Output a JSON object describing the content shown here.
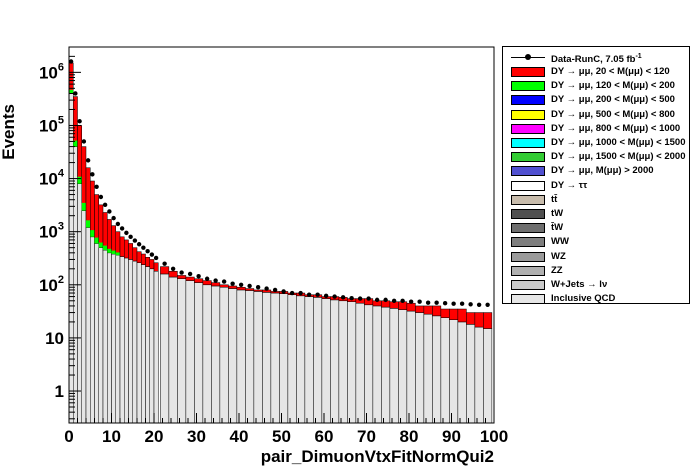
{
  "chart_data": {
    "type": "bar",
    "stacked": true,
    "xlabel": "pair_DimuonVtxFitNormQui2",
    "ylabel": "Events",
    "xlim": [
      0,
      100
    ],
    "ylim": [
      0.25,
      3000000
    ],
    "yscale": "log",
    "grid": false,
    "legend_position": "right",
    "x_ticks": [
      "0",
      "10",
      "20",
      "30",
      "40",
      "50",
      "60",
      "70",
      "80",
      "90",
      "100"
    ],
    "y_ticks": [
      "1",
      "10",
      "10^2",
      "10^3",
      "10^4",
      "10^5",
      "10^6"
    ],
    "data_series": {
      "name": "Data-RunC, 7.05 fb^{-1}",
      "x": [
        0.5,
        1.5,
        2.5,
        3.5,
        4.5,
        5.5,
        6.5,
        7.5,
        8.5,
        9.5,
        10.5,
        11.5,
        12.5,
        13.5,
        14.5,
        15.5,
        16.5,
        17.5,
        18.5,
        19.5,
        20.5,
        22.5,
        24.5,
        26.5,
        28.5,
        30.5,
        32.5,
        34.5,
        36.5,
        38.5,
        40.5,
        42.5,
        44.5,
        46.5,
        48.5,
        50.5,
        52.5,
        54.5,
        56.5,
        58.5,
        60.5,
        62.5,
        64.5,
        66.5,
        68.5,
        70.5,
        72.5,
        74.5,
        76.5,
        78.5,
        80.5,
        82.5,
        84.5,
        86.5,
        88.5,
        90.5,
        92.5,
        94.5,
        96.5,
        98.5
      ],
      "y": [
        1600000,
        400000,
        120000,
        50000,
        22000,
        12000,
        7000,
        4500,
        3200,
        2400,
        1800,
        1400,
        1150,
        950,
        800,
        680,
        580,
        500,
        430,
        370,
        320,
        250,
        200,
        170,
        160,
        145,
        130,
        120,
        115,
        105,
        100,
        95,
        90,
        85,
        80,
        75,
        70,
        70,
        65,
        65,
        62,
        60,
        58,
        56,
        55,
        55,
        52,
        52,
        50,
        50,
        48,
        48,
        46,
        46,
        45,
        44,
        44,
        43,
        42,
        42
      ]
    },
    "series": [
      {
        "name": "DY → μμ, 20 < M(μμ) <  120",
        "color": "#ff0000"
      },
      {
        "name": "DY → μμ, 120 < M(μμ) <  200",
        "color": "#00ff00"
      },
      {
        "name": "DY → μμ, 200 < M(μμ) <  500",
        "color": "#0000ff"
      },
      {
        "name": "DY → μμ, 500 < M(μμ) <  800",
        "color": "#ffff00"
      },
      {
        "name": "DY → μμ, 800 < M(μμ) < 1000",
        "color": "#ff00ff"
      },
      {
        "name": "DY → μμ, 1000 < M(μμ) < 1500",
        "color": "#00ffff"
      },
      {
        "name": "DY → μμ, 1500 < M(μμ) < 2000",
        "color": "#33cc33"
      },
      {
        "name": "DY → μμ, M(μμ) > 2000",
        "color": "#5050d0"
      },
      {
        "name": "DY → ττ",
        "color": "#ffffff"
      },
      {
        "name": "tt̄",
        "color": "#c8bcac"
      },
      {
        "name": "tW",
        "color": "#505050"
      },
      {
        "name": "t̄W",
        "color": "#6e6e6e"
      },
      {
        "name": "WW",
        "color": "#7e7e7e"
      },
      {
        "name": "WZ",
        "color": "#9a9a9a"
      },
      {
        "name": "ZZ",
        "color": "#b0b0b0"
      },
      {
        "name": "W+Jets → lν",
        "color": "#cacaca"
      },
      {
        "name": "Inclusive QCD",
        "color": "#e6e6e6"
      }
    ],
    "bins_x": [
      0.5,
      1.5,
      2.5,
      3.5,
      4.5,
      5.5,
      6.5,
      7.5,
      8.5,
      9.5,
      10.5,
      11.5,
      12.5,
      13.5,
      14.5,
      15.5,
      16.5,
      17.5,
      18.5,
      19.5,
      20.5,
      22.5,
      24.5,
      26.5,
      28.5,
      30.5,
      32.5,
      34.5,
      36.5,
      38.5,
      40.5,
      42.5,
      44.5,
      46.5,
      48.5,
      50.5,
      52.5,
      54.5,
      56.5,
      58.5,
      60.5,
      62.5,
      64.5,
      66.5,
      68.5,
      70.5,
      72.5,
      74.5,
      76.5,
      78.5,
      80.5,
      82.5,
      84.5,
      86.5,
      88.5,
      90.5,
      92.5,
      94.5,
      96.5,
      98.5
    ],
    "stack_totals": [
      1500000,
      350000,
      100000,
      40000,
      16000,
      9000,
      5000,
      3200,
      2300,
      1700,
      1300,
      1000,
      800,
      700,
      600,
      500,
      420,
      380,
      330,
      300,
      260,
      220,
      180,
      150,
      140,
      130,
      120,
      110,
      100,
      95,
      90,
      85,
      80,
      80,
      75,
      75,
      70,
      70,
      65,
      65,
      60,
      60,
      58,
      55,
      55,
      55,
      50,
      50,
      48,
      48,
      45,
      40,
      40,
      40,
      35,
      35,
      35,
      30,
      30,
      30
    ],
    "qcd_level": [
      400000,
      40000,
      8000,
      2500,
      1200,
      800,
      600,
      500,
      450,
      400,
      380,
      360,
      340,
      320,
      300,
      280,
      260,
      240,
      220,
      200,
      180,
      160,
      140,
      130,
      120,
      110,
      100,
      95,
      90,
      85,
      80,
      78,
      75,
      72,
      70,
      68,
      65,
      62,
      60,
      58,
      55,
      52,
      50,
      48,
      45,
      42,
      40,
      38,
      36,
      34,
      32,
      30,
      28,
      26,
      24,
      22,
      20,
      18,
      16,
      15
    ]
  },
  "legend": {
    "data_label": "Data-RunC, 7.05 fb",
    "data_label_sup": "-1"
  }
}
